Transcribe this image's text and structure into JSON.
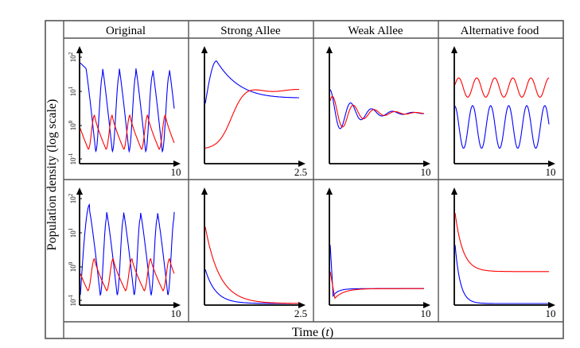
{
  "figure": {
    "ylabel": "Population density (log scale)",
    "xlabel_text": "Time (",
    "xlabel_var": "t",
    "xlabel_close": ")",
    "column_titles": [
      "Original",
      "Strong Allee",
      "Weak Allee",
      "Alternative food"
    ],
    "x_tick_labels": [
      "10",
      "2.5",
      "10",
      "10"
    ],
    "y_tick_labels": [
      "10^-1",
      "10^0",
      "10^1",
      "10^2"
    ],
    "colors": {
      "series_a": "#0000ff",
      "series_b": "#ff0000",
      "axis": "#000000",
      "border": "#555555"
    },
    "series_names": [
      "blue",
      "red"
    ]
  },
  "chart_data": [
    {
      "type": "line",
      "row": 1,
      "column": "Original",
      "x_range": [
        0,
        10
      ],
      "y_scale": "log",
      "y_range": [
        0.1,
        100
      ],
      "yticks": [
        0.1,
        1,
        10,
        100
      ],
      "series": [
        {
          "name": "blue",
          "shape": "oscillating",
          "period": 1.7,
          "peaks": 5,
          "peak": 60,
          "trough": 0.1,
          "start": 60
        },
        {
          "name": "red",
          "shape": "oscillating",
          "period": 1.7,
          "peaks": 5,
          "peak": 1.5,
          "trough": 0.12,
          "start": 0.12
        }
      ]
    },
    {
      "type": "line",
      "row": 1,
      "column": "Strong Allee",
      "x_range": [
        0,
        2.5
      ],
      "y_scale": "log",
      "series": [
        {
          "name": "blue",
          "shape": "hump-then-settle",
          "start": 0.4,
          "peak": 0.95,
          "end": 0.4
        },
        {
          "name": "red",
          "shape": "rise-then-settle",
          "start": 0.1,
          "end": 0.4
        }
      ]
    },
    {
      "type": "line",
      "row": 1,
      "column": "Weak Allee",
      "x_range": [
        0,
        10
      ],
      "y_scale": "log",
      "series": [
        {
          "name": "blue",
          "shape": "damped-oscillation",
          "start": 0.6,
          "end": 0.45
        },
        {
          "name": "red",
          "shape": "damped-oscillation",
          "start": 0.5,
          "end": 0.45
        }
      ]
    },
    {
      "type": "line",
      "row": 1,
      "column": "Alternative food",
      "x_range": [
        0,
        10
      ],
      "y_scale": "log",
      "series": [
        {
          "name": "blue",
          "shape": "oscillating",
          "peaks": 5,
          "level": 0.3
        },
        {
          "name": "red",
          "shape": "oscillating",
          "peaks": 5,
          "level": 0.65
        }
      ]
    },
    {
      "type": "line",
      "row": 2,
      "column": "Original",
      "x_range": [
        0,
        10
      ],
      "y_scale": "log",
      "y_range": [
        0.1,
        100
      ],
      "yticks": [
        0.1,
        1,
        10,
        100
      ],
      "series": [
        {
          "name": "blue",
          "shape": "oscillating",
          "peaks": 5,
          "peak": 60,
          "trough": 0.1,
          "start": 0.1
        },
        {
          "name": "red",
          "shape": "oscillating",
          "peaks": 5,
          "peak": 1.5,
          "trough": 0.12,
          "start": 0.12
        }
      ]
    },
    {
      "type": "line",
      "row": 2,
      "column": "Strong Allee",
      "x_range": [
        0,
        2.5
      ],
      "y_scale": "log",
      "series": [
        {
          "name": "blue",
          "shape": "decay-to-zero",
          "start": 0.3,
          "end": 0
        },
        {
          "name": "red",
          "shape": "decay-to-zero",
          "start": 0.7,
          "end": 0
        }
      ]
    },
    {
      "type": "line",
      "row": 2,
      "column": "Weak Allee",
      "x_range": [
        0,
        10
      ],
      "y_scale": "log",
      "series": [
        {
          "name": "blue",
          "shape": "drop-then-flat",
          "start": 0.6,
          "end": 0.1
        },
        {
          "name": "red",
          "shape": "drop-then-flat",
          "start": 0.3,
          "end": 0.1
        }
      ]
    },
    {
      "type": "line",
      "row": 2,
      "column": "Alternative food",
      "x_range": [
        0,
        10
      ],
      "y_scale": "log",
      "series": [
        {
          "name": "blue",
          "shape": "decay-to-zero",
          "start": 0.5,
          "end": 0
        },
        {
          "name": "red",
          "shape": "decay-then-flat",
          "start": 0.8,
          "end": 0.3
        }
      ]
    }
  ]
}
